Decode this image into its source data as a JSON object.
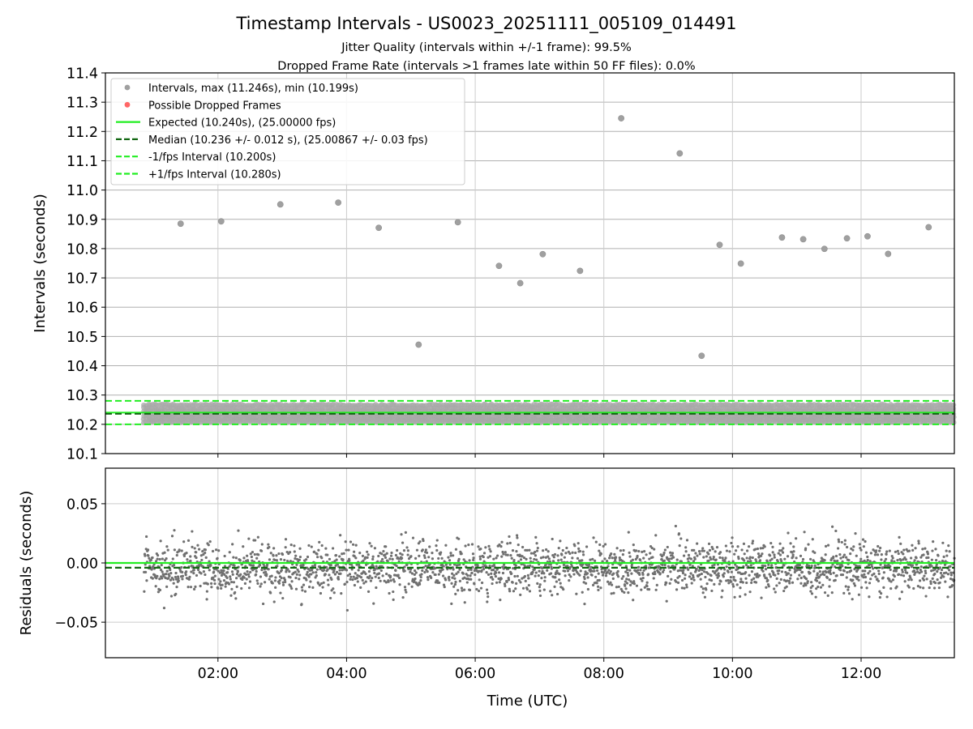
{
  "figure": {
    "title": "Timestamp Intervals - US0023_20251111_005109_014491",
    "subtitle1": "Jitter Quality (intervals within +/-1 frame): 99.5%",
    "subtitle2": "Dropped Frame Rate (intervals >1 frames late within 50 FF files): 0.0%"
  },
  "chart_data": [
    {
      "id": "intervals",
      "type": "scatter",
      "xlabel": "",
      "ylabel": "Intervals (seconds)",
      "xlim_hours": [
        0.25,
        13.45
      ],
      "ylim": [
        10.1,
        11.4
      ],
      "yticks": [
        10.1,
        10.2,
        10.3,
        10.4,
        10.5,
        10.6,
        10.7,
        10.8,
        10.9,
        11.0,
        11.1,
        11.2,
        11.3,
        11.4
      ],
      "ytick_labels": [
        "10.1",
        "10.2",
        "10.3",
        "10.4",
        "10.5",
        "10.6",
        "10.7",
        "10.8",
        "10.9",
        "11.0",
        "11.1",
        "11.2",
        "11.3",
        "11.4"
      ],
      "xticks_hours": [
        2,
        4,
        6,
        8,
        10,
        12
      ],
      "grid": true,
      "legend_position": "upper-left",
      "legend": [
        {
          "label": "Intervals, max (11.246s), min (10.199s)",
          "kind": "marker",
          "color": "#a0a0a0"
        },
        {
          "label": "Possible Dropped Frames",
          "kind": "marker",
          "color": "#ff6666"
        },
        {
          "label": "Expected (10.240s), (25.00000 fps)",
          "kind": "solid",
          "color": "#22ee22"
        },
        {
          "label": "Median (10.236 +/- 0.012 s), (25.00867 +/- 0.03 fps)",
          "kind": "dashed",
          "color": "#116611"
        },
        {
          "label": "-1/fps Interval (10.200s)",
          "kind": "dashed",
          "color": "#22ee22"
        },
        {
          "label": "+1/fps Interval (10.280s)",
          "kind": "dashed",
          "color": "#22ee22"
        }
      ],
      "reference_lines": [
        {
          "name": "expected",
          "y": 10.24,
          "style": "solid",
          "color": "#22ee22"
        },
        {
          "name": "median",
          "y": 10.236,
          "style": "dashed",
          "color": "#116611"
        },
        {
          "name": "minus-fps",
          "y": 10.2,
          "style": "dashed",
          "color": "#22ee22"
        },
        {
          "name": "plus-fps",
          "y": 10.28,
          "style": "dashed",
          "color": "#22ee22"
        }
      ],
      "bulk_band": {
        "x_start_hours": 0.85,
        "x_end_hours": 13.45,
        "y_center": 10.236,
        "y_spread": 0.025
      },
      "outliers": [
        {
          "x": 1.42,
          "y": 10.885
        },
        {
          "x": 2.05,
          "y": 10.893
        },
        {
          "x": 2.97,
          "y": 10.951
        },
        {
          "x": 3.87,
          "y": 10.957
        },
        {
          "x": 4.5,
          "y": 10.871
        },
        {
          "x": 5.12,
          "y": 10.472
        },
        {
          "x": 5.73,
          "y": 10.89
        },
        {
          "x": 6.37,
          "y": 10.741
        },
        {
          "x": 6.7,
          "y": 10.682
        },
        {
          "x": 7.05,
          "y": 10.781
        },
        {
          "x": 7.63,
          "y": 10.724
        },
        {
          "x": 8.27,
          "y": 11.245
        },
        {
          "x": 9.18,
          "y": 11.125
        },
        {
          "x": 9.52,
          "y": 10.434
        },
        {
          "x": 9.8,
          "y": 10.813
        },
        {
          "x": 10.13,
          "y": 10.749
        },
        {
          "x": 10.77,
          "y": 10.838
        },
        {
          "x": 11.1,
          "y": 10.832
        },
        {
          "x": 11.43,
          "y": 10.799
        },
        {
          "x": 11.78,
          "y": 10.835
        },
        {
          "x": 12.1,
          "y": 10.842
        },
        {
          "x": 12.42,
          "y": 10.782
        },
        {
          "x": 13.05,
          "y": 10.873
        }
      ]
    },
    {
      "id": "residuals",
      "type": "scatter",
      "xlabel": "Time (UTC)",
      "ylabel": "Residuals (seconds)",
      "xlim_hours": [
        0.25,
        13.45
      ],
      "ylim": [
        -0.08,
        0.08
      ],
      "yticks": [
        -0.05,
        0.0,
        0.05
      ],
      "ytick_labels": [
        "−0.05",
        "0.00",
        "0.05"
      ],
      "xticks_hours": [
        2,
        4,
        6,
        8,
        10,
        12
      ],
      "xtick_labels": [
        "02:00",
        "04:00",
        "06:00",
        "08:00",
        "10:00",
        "12:00"
      ],
      "grid": true,
      "reference_lines": [
        {
          "name": "expected-zero",
          "y": 0.0,
          "style": "solid",
          "color": "#22ee22"
        },
        {
          "name": "median-offset",
          "y": -0.004,
          "style": "dashed",
          "color": "#116611"
        }
      ],
      "point_cloud": {
        "x_start_hours": 0.85,
        "x_end_hours": 13.45,
        "count": 2400,
        "center": -0.004,
        "sigma": 0.011,
        "color": "#707070"
      }
    }
  ]
}
